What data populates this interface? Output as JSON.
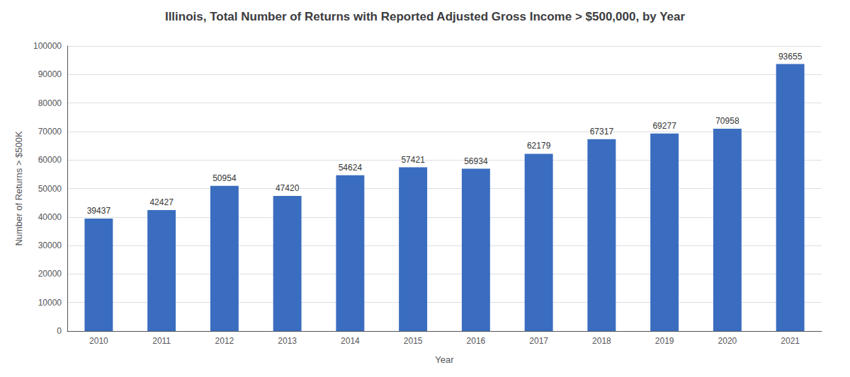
{
  "chart_data": {
    "type": "bar",
    "title": "Illinois, Total Number of Returns with Reported Adjusted Gross Income > $500,000, by Year",
    "xlabel": "Year",
    "ylabel": "Number of Returns > $500K",
    "categories": [
      "2010",
      "2011",
      "2012",
      "2013",
      "2014",
      "2015",
      "2016",
      "2017",
      "2018",
      "2019",
      "2020",
      "2021"
    ],
    "values": [
      39437,
      42427,
      50954,
      47420,
      54624,
      57421,
      56934,
      62179,
      67317,
      69277,
      70958,
      93655
    ],
    "color": "#3A6DBF",
    "ylim": [
      0,
      100000
    ],
    "yticks": [
      0,
      10000,
      20000,
      30000,
      40000,
      50000,
      60000,
      70000,
      80000,
      90000,
      100000
    ],
    "grid": true,
    "data_labels": true
  }
}
